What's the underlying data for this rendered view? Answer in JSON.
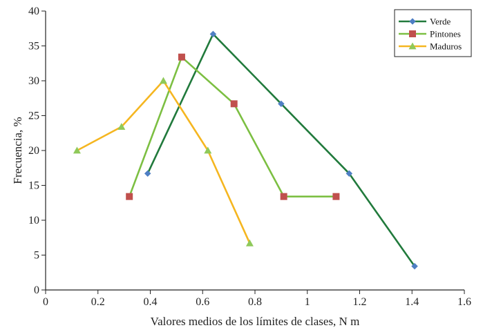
{
  "chart_data": {
    "type": "line",
    "title": "",
    "xlabel": "Valores medios de los límites de clases, N m",
    "ylabel": "Frecuencia, %",
    "xlim": [
      0,
      1.6
    ],
    "ylim": [
      0,
      40
    ],
    "xticks": [
      0,
      0.2,
      0.4,
      0.6,
      0.8,
      1,
      1.2,
      1.4,
      1.6
    ],
    "yticks": [
      0,
      5,
      10,
      15,
      20,
      25,
      30,
      35,
      40
    ],
    "xtick_labels": [
      "0",
      "0.2",
      "0.4",
      "0.6",
      "0.8",
      "1",
      "1.2",
      "1.4",
      "1.6"
    ],
    "ytick_labels": [
      "0",
      "5",
      "10",
      "15",
      "20",
      "25",
      "30",
      "35",
      "40"
    ],
    "grid": false,
    "legend_position": "top-right",
    "series": [
      {
        "name": "Verde",
        "color": "#217a3c",
        "marker": "diamond",
        "marker_color": "#4f7fc4",
        "x": [
          0.39,
          0.64,
          0.9,
          1.16,
          1.41
        ],
        "y": [
          16.7,
          36.7,
          26.7,
          16.7,
          3.4
        ]
      },
      {
        "name": "Pintones",
        "color": "#7cbf42",
        "marker": "square",
        "marker_color": "#c0504d",
        "x": [
          0.32,
          0.52,
          0.72,
          0.91,
          1.11
        ],
        "y": [
          13.4,
          33.4,
          26.7,
          13.4,
          13.4
        ]
      },
      {
        "name": "Maduros",
        "color": "#f5b620",
        "marker": "triangle",
        "marker_color": "#8fc95a",
        "x": [
          0.12,
          0.29,
          0.45,
          0.62,
          0.78
        ],
        "y": [
          20,
          23.4,
          30,
          20,
          6.7
        ]
      }
    ]
  }
}
